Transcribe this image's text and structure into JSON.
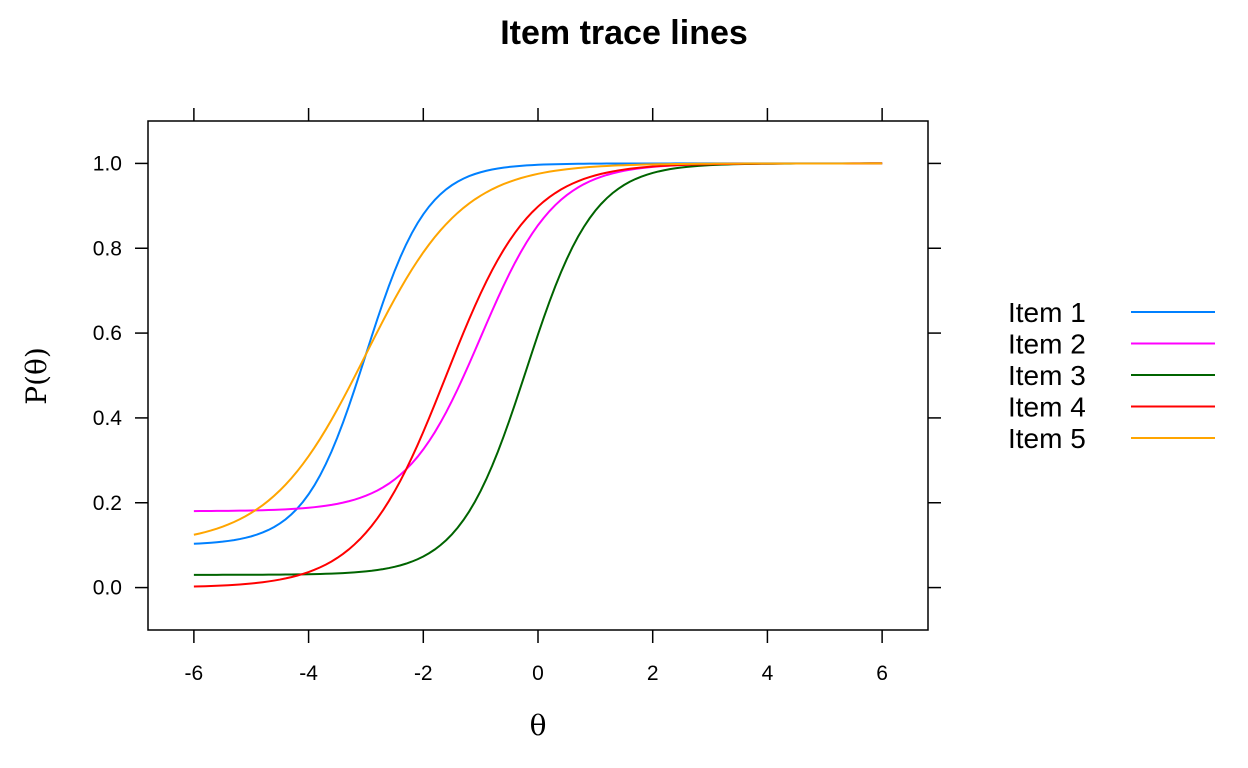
{
  "chart_data": {
    "type": "line",
    "title": "Item trace lines",
    "xlabel": "θ",
    "ylabel": "P(θ)",
    "xlim": [
      -6.8,
      6.8
    ],
    "ylim": [
      -0.1,
      1.1
    ],
    "xticks": [
      -6,
      -4,
      -2,
      0,
      2,
      4,
      6
    ],
    "yticks": [
      0.0,
      0.2,
      0.4,
      0.6,
      0.8,
      1.0
    ],
    "grid": false,
    "legend_position": "right",
    "series": [
      {
        "name": "Item 1",
        "color": "#0080ff",
        "a": 1.1,
        "b": -3.0,
        "c": 0.1
      },
      {
        "name": "Item 2",
        "color": "#ff00ff",
        "a": 0.9,
        "b": -1.0,
        "c": 0.18
      },
      {
        "name": "Item 3",
        "color": "#006400",
        "a": 1.0,
        "b": -0.2,
        "c": 0.03
      },
      {
        "name": "Item 4",
        "color": "#ff0000",
        "a": 0.8,
        "b": -1.6,
        "c": 0.0
      },
      {
        "name": "Item 5",
        "color": "#ffa500",
        "a": 0.7,
        "b": -3.0,
        "c": 0.1
      }
    ]
  }
}
